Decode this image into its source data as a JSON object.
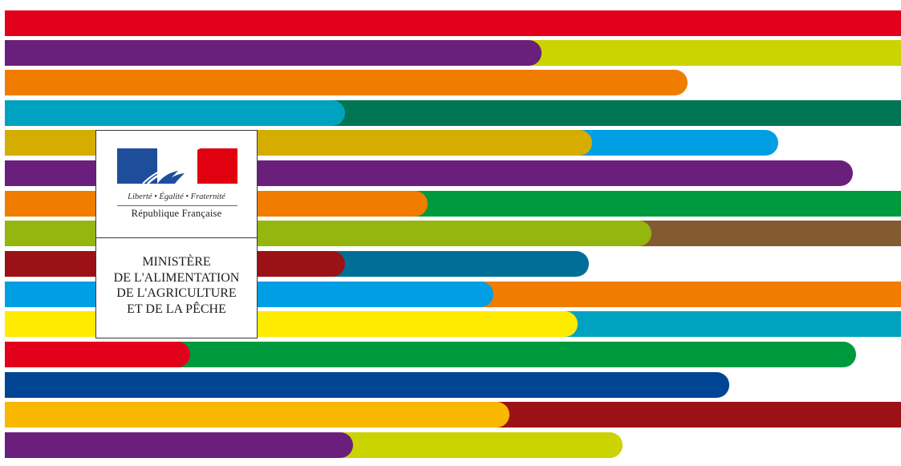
{
  "logo": {
    "motto": "Liberté • Égalité • Fraternité",
    "republic": "République Française",
    "ministry_lines": [
      "MINISTÈRE",
      "DE L'ALIMENTATION",
      "DE L'AGRICULTURE",
      "ET DE LA PÊCHE"
    ],
    "flag_colors": {
      "blue": "#1e4d9b",
      "white": "#ffffff",
      "red": "#e1000f"
    }
  },
  "stripe_colors": {
    "red": "#e3001b",
    "purple": "#6b1f7c",
    "lime": "#cbd300",
    "orange": "#f07d00",
    "cyan": "#00a3bf",
    "teal": "#007553",
    "ochre": "#d4ad00",
    "sky": "#009fe3",
    "green": "#009a3e",
    "olive": "#95b50f",
    "brown": "#845a33",
    "maroon": "#9b1116",
    "petrol": "#006f97",
    "yellow": "#ffeb00",
    "navy": "#004494",
    "amber": "#f9b700"
  }
}
